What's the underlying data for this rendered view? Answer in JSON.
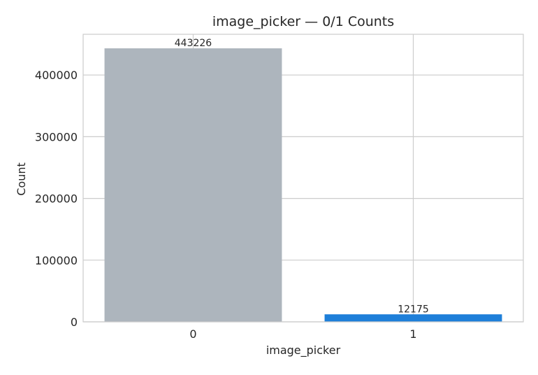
{
  "chart_data": {
    "type": "bar",
    "title": "image_picker — 0/1 Counts",
    "xlabel": "image_picker",
    "ylabel": "Count",
    "categories": [
      "0",
      "1"
    ],
    "values": [
      443226,
      12175
    ],
    "data_labels": [
      "443226",
      "12175"
    ],
    "bar_colors": [
      "#adb5bd",
      "#1e7fd9"
    ],
    "ylim": [
      0,
      466000
    ],
    "y_ticks": [
      0,
      100000,
      200000,
      300000,
      400000
    ],
    "y_tick_labels": [
      "0",
      "100000",
      "200000",
      "300000",
      "400000"
    ],
    "grid": true,
    "legend": "none"
  }
}
